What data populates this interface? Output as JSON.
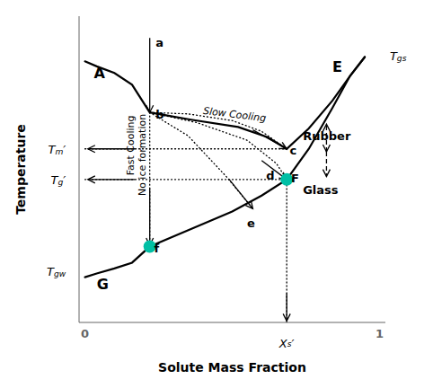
{
  "chart_data": {
    "type": "line",
    "xlabel": "Solute Mass Fraction",
    "ylabel": "Temperature",
    "xlim": [
      -0.02,
      1.02
    ],
    "ylim": [
      0.0,
      1.05
    ],
    "xticks": [
      0,
      1
    ],
    "yticks": [],
    "tick_labels": "x",
    "grid": false,
    "series": [
      {
        "x": [
          0.0,
          0.04,
          0.1,
          0.16,
          0.22,
          0.36,
          0.52,
          0.62,
          0.685,
          0.76,
          0.84,
          0.9,
          0.95
        ],
        "values": [
          0.895,
          0.878,
          0.855,
          0.815,
          0.72,
          0.695,
          0.67,
          0.635,
          0.595,
          0.665,
          0.76,
          0.845,
          0.91
        ],
        "color": "black",
        "line_style": "solid"
      },
      {
        "x": [
          0.0,
          0.04,
          0.1,
          0.16,
          0.22,
          0.36,
          0.5,
          0.6,
          0.685,
          0.76,
          0.84,
          0.9,
          0.95
        ],
        "values": [
          0.155,
          0.168,
          0.185,
          0.205,
          0.26,
          0.32,
          0.38,
          0.435,
          0.49,
          0.595,
          0.735,
          0.845,
          0.91
        ],
        "color": "black",
        "line_style": "solid"
      },
      {
        "x": [
          0.22,
          0.35,
          0.5,
          0.6,
          0.685
        ],
        "values": [
          0.72,
          0.715,
          0.692,
          0.655,
          0.595
        ],
        "color": "black",
        "line_style": "dotted"
      },
      {
        "x": [
          0.22,
          0.22
        ],
        "values": [
          0.72,
          0.26
        ],
        "color": "black",
        "line_style": "dotted"
      },
      {
        "x": [
          0.22,
          0.35,
          0.48,
          0.57
        ],
        "values": [
          0.72,
          0.64,
          0.5,
          0.39
        ],
        "color": "black",
        "line_style": "dotted"
      },
      {
        "x": [
          0.22,
          0.38,
          0.55,
          0.65,
          0.685
        ],
        "values": [
          0.72,
          0.685,
          0.625,
          0.545,
          0.49
        ],
        "color": "black",
        "line_style": "dotted"
      },
      {
        "x": [
          0.0,
          0.685
        ],
        "values": [
          0.595,
          0.595
        ],
        "color": "black",
        "line_style": "dotted"
      },
      {
        "x": [
          0.0,
          0.685
        ],
        "values": [
          0.49,
          0.49
        ],
        "color": "black",
        "line_style": "dotted"
      },
      {
        "x": [
          0.685,
          0.685
        ],
        "values": [
          0.0,
          0.49
        ],
        "color": "black",
        "line_style": "dotted"
      },
      {
        "type": "scatter",
        "x": [
          0.685,
          0.22
        ],
        "values": [
          0.49,
          0.26
        ],
        "color": "#00BFA5",
        "marker": "circle"
      }
    ],
    "annotations": [
      {
        "text": "a",
        "x": 0.24,
        "y": 0.975
      },
      {
        "text": "b",
        "x": 0.24,
        "y": 0.73
      },
      {
        "text": "c",
        "x": 0.695,
        "y": 0.605
      },
      {
        "text": "d",
        "x": 0.615,
        "y": 0.52
      },
      {
        "text": "e",
        "x": 0.55,
        "y": 0.355
      },
      {
        "text": "f",
        "x": 0.235,
        "y": 0.27
      },
      {
        "text": "A",
        "x": 0.03,
        "y": 0.855
      },
      {
        "text": "E",
        "x": 0.84,
        "y": 0.875
      },
      {
        "text": "G",
        "x": 0.04,
        "y": 0.13
      },
      {
        "text": "Slow Cooling",
        "x": 0.4,
        "y": 0.715
      },
      {
        "text": "Fast Cooling",
        "x": 0.155,
        "y": 0.71
      },
      {
        "text": "No ice formation",
        "x": 0.195,
        "y": 0.715
      },
      {
        "text": "Rubber",
        "x": 0.74,
        "y": 0.64
      },
      {
        "text": "Glass",
        "x": 0.74,
        "y": 0.455
      },
      {
        "text": "F",
        "x": 0.7,
        "y": 0.495
      },
      {
        "text": "Tm′",
        "x": -0.065,
        "y": 0.595
      },
      {
        "text": "Tg′",
        "x": -0.065,
        "y": 0.49
      },
      {
        "text": "Tgw",
        "x": -0.065,
        "y": 0.175
      },
      {
        "text": "Tgs",
        "x": 1.035,
        "y": 0.915
      },
      {
        "text": "Xs′",
        "x": 0.685,
        "y": -0.055
      },
      {
        "arrow": "end",
        "from": [
          0.22,
          0.975
        ],
        "x": 0.22,
        "y": 0.72,
        "color": "black"
      },
      {
        "arrow": "end",
        "from": [
          0.57,
          0.66
        ],
        "x": 0.685,
        "y": 0.595,
        "color": "black"
      },
      {
        "arrow": "end",
        "from": [
          0.22,
          0.46
        ],
        "x": 0.22,
        "y": 0.265,
        "color": "black"
      },
      {
        "arrow": "end",
        "from": [
          0.49,
          0.49
        ],
        "x": 0.57,
        "y": 0.39,
        "color": "black"
      },
      {
        "arrow": "end",
        "from": [
          0.6,
          0.555
        ],
        "x": 0.685,
        "y": 0.49,
        "color": "black"
      },
      {
        "arrow": "both",
        "from": [
          0.82,
          0.585
        ],
        "x": 0.82,
        "y": 0.68,
        "color": "black",
        "line_style": "dashed"
      },
      {
        "arrow": "end",
        "from": [
          0.82,
          0.585
        ],
        "x": 0.82,
        "y": 0.5,
        "color": "black",
        "line_style": "dashed"
      },
      {
        "arrow": "end",
        "from": [
          0.17,
          0.595
        ],
        "x": 0.01,
        "y": 0.595,
        "color": "black"
      },
      {
        "arrow": "end",
        "from": [
          0.17,
          0.49
        ],
        "x": 0.01,
        "y": 0.49,
        "color": "black"
      },
      {
        "arrow": "end",
        "from": [
          0.685,
          0.1
        ],
        "x": 0.685,
        "y": 0.005,
        "color": "black"
      }
    ]
  }
}
